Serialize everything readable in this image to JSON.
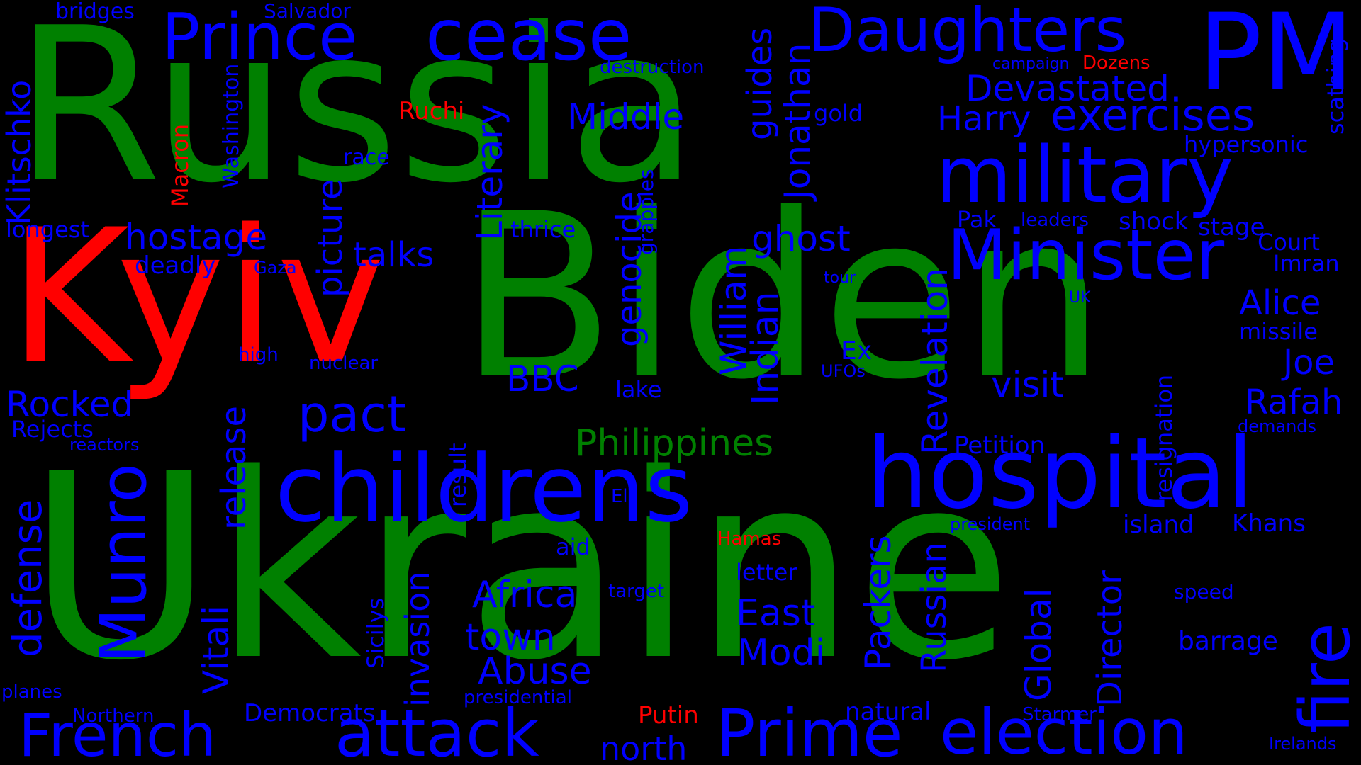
{
  "colors": {
    "background": "#000000",
    "green": "#008000",
    "red": "#ff0000",
    "blue": "#0000ff"
  },
  "words": [
    {
      "text": "Russia",
      "color": "green"
    },
    {
      "text": "Biden",
      "color": "green"
    },
    {
      "text": "Ukraine",
      "color": "green"
    },
    {
      "text": "Kyiv",
      "color": "red"
    },
    {
      "text": "Philippines",
      "color": "green"
    },
    {
      "text": "Ruchi",
      "color": "red"
    },
    {
      "text": "Macron",
      "color": "red"
    },
    {
      "text": "Dozens",
      "color": "red"
    },
    {
      "text": "Hamas",
      "color": "red"
    },
    {
      "text": "Putin",
      "color": "red"
    },
    {
      "text": "cease",
      "color": "blue"
    },
    {
      "text": "Prince",
      "color": "blue"
    },
    {
      "text": "Daughters",
      "color": "blue"
    },
    {
      "text": "PM",
      "color": "blue"
    },
    {
      "text": "military",
      "color": "blue"
    },
    {
      "text": "Minister",
      "color": "blue"
    },
    {
      "text": "childrens",
      "color": "blue"
    },
    {
      "text": "hospital",
      "color": "blue"
    },
    {
      "text": "Devastated",
      "color": "blue"
    },
    {
      "text": "Harry",
      "color": "blue"
    },
    {
      "text": "exercises",
      "color": "blue"
    },
    {
      "text": "hypersonic",
      "color": "blue"
    },
    {
      "text": "scathing",
      "color": "blue"
    },
    {
      "text": "bridges",
      "color": "blue"
    },
    {
      "text": "Salvador",
      "color": "blue"
    },
    {
      "text": "destruction",
      "color": "blue"
    },
    {
      "text": "campaign",
      "color": "blue"
    },
    {
      "text": "Klitschko",
      "color": "blue"
    },
    {
      "text": "Washington",
      "color": "blue"
    },
    {
      "text": "Middle",
      "color": "blue"
    },
    {
      "text": "guides",
      "color": "blue"
    },
    {
      "text": "Jonathan",
      "color": "blue"
    },
    {
      "text": "gold",
      "color": "blue"
    },
    {
      "text": "race",
      "color": "blue"
    },
    {
      "text": "Literary",
      "color": "blue"
    },
    {
      "text": "grapples",
      "color": "blue"
    },
    {
      "text": "longest",
      "color": "blue"
    },
    {
      "text": "hostage",
      "color": "blue"
    },
    {
      "text": "picture",
      "color": "blue"
    },
    {
      "text": "thrice",
      "color": "blue"
    },
    {
      "text": "genocide",
      "color": "blue"
    },
    {
      "text": "William",
      "color": "blue"
    },
    {
      "text": "ghost",
      "color": "blue"
    },
    {
      "text": "Pak",
      "color": "blue"
    },
    {
      "text": "leaders",
      "color": "blue"
    },
    {
      "text": "shock",
      "color": "blue"
    },
    {
      "text": "stage",
      "color": "blue"
    },
    {
      "text": "Court",
      "color": "blue"
    },
    {
      "text": "Imran",
      "color": "blue"
    },
    {
      "text": "deadly",
      "color": "blue"
    },
    {
      "text": "Gaza",
      "color": "blue"
    },
    {
      "text": "talks",
      "color": "blue"
    },
    {
      "text": "tour",
      "color": "blue"
    },
    {
      "text": "Indian",
      "color": "blue"
    },
    {
      "text": "Revelation",
      "color": "blue"
    },
    {
      "text": "UK",
      "color": "blue"
    },
    {
      "text": "Alice",
      "color": "blue"
    },
    {
      "text": "missile",
      "color": "blue"
    },
    {
      "text": "high",
      "color": "blue"
    },
    {
      "text": "nuclear",
      "color": "blue"
    },
    {
      "text": "Ex",
      "color": "blue"
    },
    {
      "text": "UFOs",
      "color": "blue"
    },
    {
      "text": "BBC",
      "color": "blue"
    },
    {
      "text": "Joe",
      "color": "blue"
    },
    {
      "text": "visit",
      "color": "blue"
    },
    {
      "text": "lake",
      "color": "blue"
    },
    {
      "text": "Rafah",
      "color": "blue"
    },
    {
      "text": "Rocked",
      "color": "blue"
    },
    {
      "text": "pact",
      "color": "blue"
    },
    {
      "text": "Rejects",
      "color": "blue"
    },
    {
      "text": "release",
      "color": "blue"
    },
    {
      "text": "reactors",
      "color": "blue"
    },
    {
      "text": "demands",
      "color": "blue"
    },
    {
      "text": "result",
      "color": "blue"
    },
    {
      "text": "Petition",
      "color": "blue"
    },
    {
      "text": "resignation",
      "color": "blue"
    },
    {
      "text": "defense",
      "color": "blue"
    },
    {
      "text": "Munro",
      "color": "blue"
    },
    {
      "text": "El",
      "color": "blue"
    },
    {
      "text": "president",
      "color": "blue"
    },
    {
      "text": "island",
      "color": "blue"
    },
    {
      "text": "Khans",
      "color": "blue"
    },
    {
      "text": "fire",
      "color": "blue"
    },
    {
      "text": "aid",
      "color": "blue"
    },
    {
      "text": "letter",
      "color": "blue"
    },
    {
      "text": "Vitali",
      "color": "blue"
    },
    {
      "text": "invasion",
      "color": "blue"
    },
    {
      "text": "Sicilys",
      "color": "blue"
    },
    {
      "text": "Africa",
      "color": "blue"
    },
    {
      "text": "target",
      "color": "blue"
    },
    {
      "text": "Packers",
      "color": "blue"
    },
    {
      "text": "Russian",
      "color": "blue"
    },
    {
      "text": "Global",
      "color": "blue"
    },
    {
      "text": "Director",
      "color": "blue"
    },
    {
      "text": "speed",
      "color": "blue"
    },
    {
      "text": "East",
      "color": "blue"
    },
    {
      "text": "town",
      "color": "blue"
    },
    {
      "text": "Modi",
      "color": "blue"
    },
    {
      "text": "barrage",
      "color": "blue"
    },
    {
      "text": "Abuse",
      "color": "blue"
    },
    {
      "text": "planes",
      "color": "blue"
    },
    {
      "text": "presidential",
      "color": "blue"
    },
    {
      "text": "Northern",
      "color": "blue"
    },
    {
      "text": "Democrats",
      "color": "blue"
    },
    {
      "text": "natural",
      "color": "blue"
    },
    {
      "text": "Starmer",
      "color": "blue"
    },
    {
      "text": "French",
      "color": "blue"
    },
    {
      "text": "attack",
      "color": "blue"
    },
    {
      "text": "north",
      "color": "blue"
    },
    {
      "text": "Prime",
      "color": "blue"
    },
    {
      "text": "election",
      "color": "blue"
    },
    {
      "text": "Irelands",
      "color": "blue"
    }
  ]
}
